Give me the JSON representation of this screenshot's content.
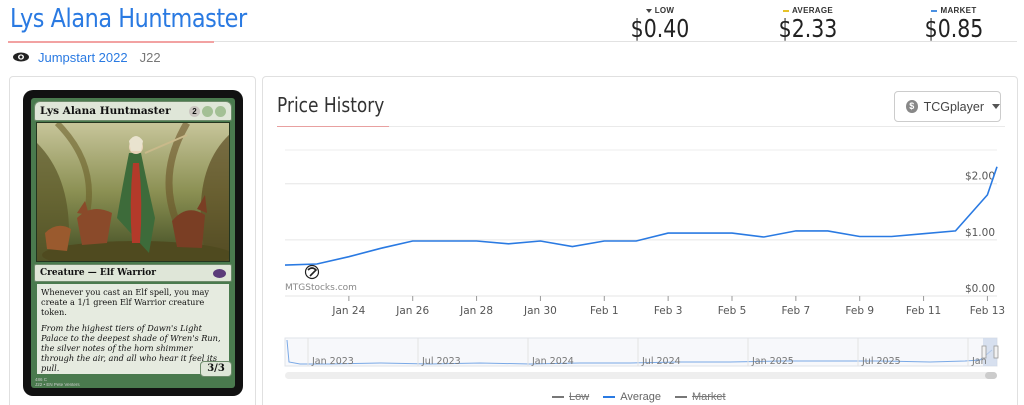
{
  "card": {
    "name": "Lys Alana Huntmaster",
    "set_name": "Jumpstart 2022",
    "set_code": "J22",
    "mana": [
      "2",
      "G",
      "G"
    ],
    "type_line": "Creature — Elf Warrior",
    "rules_text": "Whenever you cast an Elf spell, you may create a 1/1 green Elf Warrior creature token.",
    "flavor_text": "From the highest tiers of Dawn's Light Palace to the deepest shade of Wren's Run, the silver notes of the horn shimmer through the air, and all who hear it feel its pull.",
    "power_toughness": "3/3",
    "footer_line1": "486   C",
    "footer_line2": "J22 • EN  Pete Venters"
  },
  "prices": {
    "low_label": "LOW",
    "low_value": "$0.40",
    "average_label": "AVERAGE",
    "average_value": "$2.33",
    "market_label": "MARKET",
    "market_value": "$0.85"
  },
  "colors": {
    "accent": "#2a7ae2",
    "average_line": "#2a7ae2",
    "low_marker": "#444444",
    "average_marker": "#e6c229",
    "market_marker": "#4a90e2",
    "card_green": "#4a7a4e"
  },
  "history": {
    "title": "Price History",
    "vendor": "TCGplayer",
    "watermark": "MTGStocks.com",
    "legend": [
      {
        "label": "Low",
        "enabled": false,
        "color": "#555555"
      },
      {
        "label": "Average",
        "enabled": true,
        "color": "#2a7ae2"
      },
      {
        "label": "Market",
        "enabled": false,
        "color": "#555555"
      }
    ]
  },
  "navigator": {
    "labels": [
      "Jan 2023",
      "Jul 2023",
      "Jan 2024",
      "Jul 2024",
      "Jan 2025",
      "Jul 2025",
      "Jan"
    ]
  },
  "chart_data": {
    "type": "line",
    "title": "Price History",
    "xlabel": "",
    "ylabel": "",
    "x_tick_labels": [
      "Jan 24",
      "Jan 26",
      "Jan 28",
      "Jan 30",
      "Feb 1",
      "Feb 3",
      "Feb 5",
      "Feb 7",
      "Feb 9",
      "Feb 11",
      "Feb 13"
    ],
    "y_tick_labels": [
      "$0.00",
      "$1.00",
      "$2.00"
    ],
    "ylim": [
      0,
      2.6
    ],
    "grid": true,
    "legend_position": "bottom",
    "series": [
      {
        "name": "Average",
        "x": [
          "Jan 22",
          "Jan 23",
          "Jan 24",
          "Jan 25",
          "Jan 26",
          "Jan 27",
          "Jan 28",
          "Jan 29",
          "Jan 30",
          "Jan 31",
          "Feb 1",
          "Feb 2",
          "Feb 3",
          "Feb 4",
          "Feb 5",
          "Feb 6",
          "Feb 7",
          "Feb 8",
          "Feb 9",
          "Feb 10",
          "Feb 11",
          "Feb 12",
          "Feb 13",
          "Feb 13.3"
        ],
        "values": [
          0.55,
          0.57,
          0.7,
          0.85,
          0.98,
          0.98,
          0.98,
          0.93,
          0.98,
          0.88,
          0.98,
          0.98,
          1.12,
          1.12,
          1.12,
          1.05,
          1.16,
          1.16,
          1.06,
          1.06,
          1.11,
          1.16,
          1.8,
          2.3
        ]
      }
    ]
  }
}
